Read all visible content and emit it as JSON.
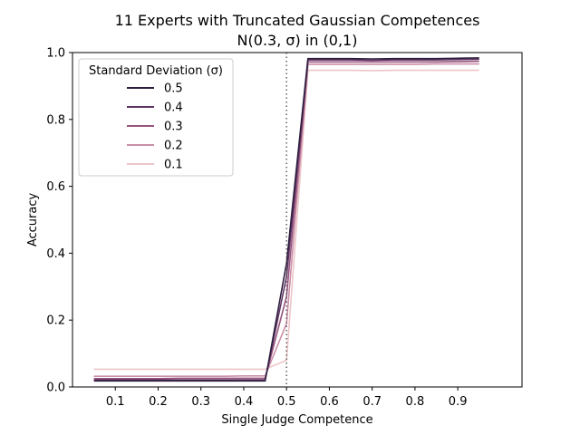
{
  "chart_data": {
    "type": "line",
    "title": "11 Experts with Truncated Gaussian Competences",
    "subtitle": "N(0.3, σ) in (0,1)",
    "xlabel": "Single Judge Competence",
    "ylabel": "Accuracy",
    "xlim": [
      0.0,
      1.05
    ],
    "ylim": [
      0.0,
      1.0
    ],
    "xticks": [
      0.1,
      0.2,
      0.3,
      0.4,
      0.5,
      0.6,
      0.7,
      0.8,
      0.9
    ],
    "xtick_labels": [
      "0.1",
      "0.2",
      "0.3",
      "0.4",
      "0.5",
      "0.6",
      "0.7",
      "0.8",
      "0.9"
    ],
    "yticks": [
      0.0,
      0.2,
      0.4,
      0.6,
      0.8,
      1.0
    ],
    "ytick_labels": [
      "0.0",
      "0.2",
      "0.4",
      "0.6",
      "0.8",
      "1.0"
    ],
    "grid": false,
    "reference_line": {
      "x": 0.5,
      "style": "dotted",
      "color": "#555555"
    },
    "legend": {
      "title": "Standard Deviation (σ)",
      "placement": "top-left"
    },
    "x": [
      0.05,
      0.1,
      0.15,
      0.2,
      0.25,
      0.3,
      0.35,
      0.4,
      0.45,
      0.5,
      0.55,
      0.6,
      0.65,
      0.7,
      0.75,
      0.8,
      0.85,
      0.9,
      0.95
    ],
    "series": [
      {
        "name": "0.5",
        "color": "#2d1e3e",
        "values": [
          0.018,
          0.018,
          0.018,
          0.018,
          0.018,
          0.018,
          0.018,
          0.018,
          0.018,
          0.37,
          0.982,
          0.982,
          0.982,
          0.981,
          0.982,
          0.982,
          0.982,
          0.983,
          0.984
        ]
      },
      {
        "name": "0.4",
        "color": "#5f3462",
        "values": [
          0.021,
          0.021,
          0.021,
          0.021,
          0.021,
          0.021,
          0.021,
          0.021,
          0.021,
          0.33,
          0.978,
          0.978,
          0.978,
          0.977,
          0.978,
          0.978,
          0.978,
          0.979,
          0.98
        ]
      },
      {
        "name": "0.3",
        "color": "#975480",
        "values": [
          0.025,
          0.025,
          0.025,
          0.025,
          0.026,
          0.026,
          0.026,
          0.026,
          0.026,
          0.27,
          0.972,
          0.972,
          0.972,
          0.972,
          0.972,
          0.972,
          0.972,
          0.973,
          0.974
        ]
      },
      {
        "name": "0.2",
        "color": "#c98fa7",
        "values": [
          0.032,
          0.032,
          0.032,
          0.032,
          0.032,
          0.032,
          0.032,
          0.033,
          0.033,
          0.19,
          0.965,
          0.965,
          0.965,
          0.965,
          0.965,
          0.965,
          0.966,
          0.966,
          0.966
        ]
      },
      {
        "name": "0.1",
        "color": "#edc5c8",
        "values": [
          0.053,
          0.053,
          0.053,
          0.053,
          0.053,
          0.053,
          0.053,
          0.053,
          0.053,
          0.08,
          0.947,
          0.947,
          0.947,
          0.946,
          0.947,
          0.947,
          0.947,
          0.947,
          0.947
        ]
      }
    ]
  }
}
